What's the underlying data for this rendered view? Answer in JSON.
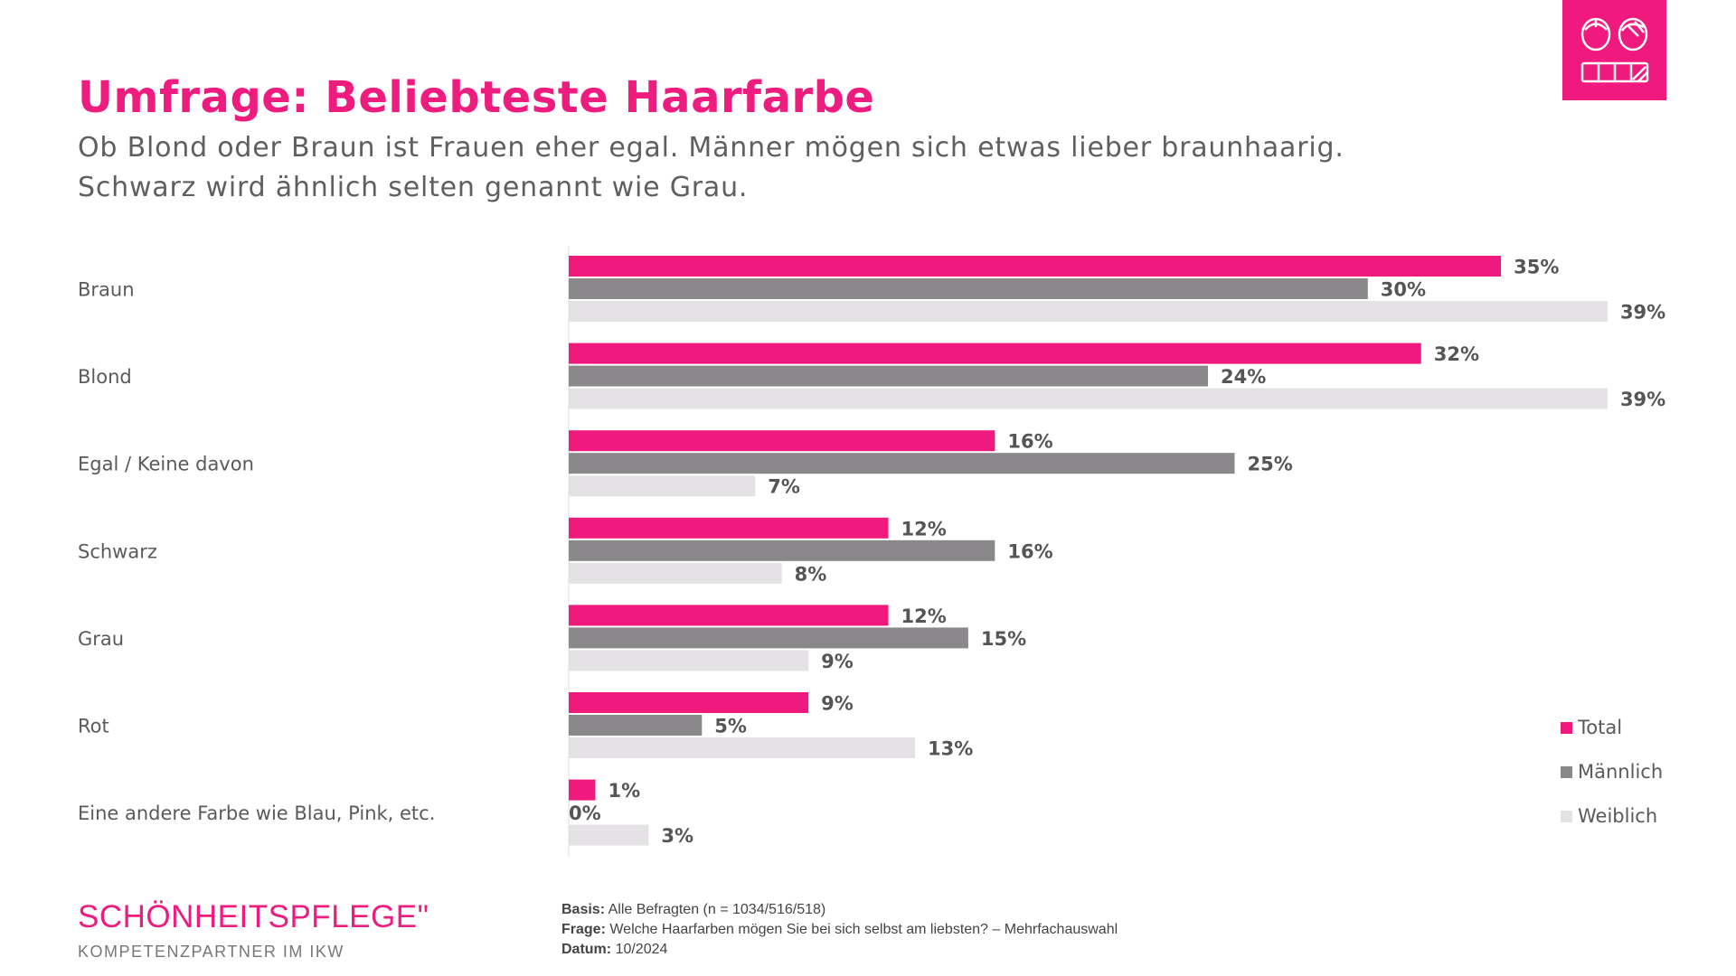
{
  "title": "Umfrage: Beliebteste Haarfarbe",
  "subtitle": [
    "Ob Blond oder Braun ist Frauen eher egal. Männer mögen sich etwas lieber braunhaarig.",
    "Schwarz wird ähnlich selten genannt wie Grau."
  ],
  "logo_icon": "two-faces-hair-color-icon",
  "chart_data": {
    "type": "bar",
    "orientation": "horizontal",
    "categories": [
      "Braun",
      "Blond",
      "Egal / Keine davon",
      "Schwarz",
      "Grau",
      "Rot",
      "Eine andere Farbe wie Blau, Pink, etc."
    ],
    "series": [
      {
        "name": "Total",
        "color": "#f0197d",
        "values": [
          35,
          32,
          16,
          12,
          12,
          9,
          1
        ]
      },
      {
        "name": "Männlich",
        "color": "#8a888b",
        "values": [
          30,
          24,
          25,
          16,
          15,
          5,
          0
        ]
      },
      {
        "name": "Weiblich",
        "color": "#e4e2e4",
        "values": [
          39,
          39,
          7,
          8,
          9,
          13,
          3
        ]
      }
    ],
    "value_suffix": "%",
    "legend": "right",
    "grid": false
  },
  "footer": {
    "brand": "SCHÖNHEITSPFLEGE\"",
    "brand_sub": "KOMPETENZPARTNER IM IKW",
    "notes": [
      {
        "label": "Basis:",
        "text": "Alle Befragten (n = 1034/516/518)"
      },
      {
        "label": "Frage:",
        "text": "Welche Haarfarben mögen Sie bei sich selbst am liebsten? – Mehrfachauswahl"
      },
      {
        "label": "Datum:",
        "text": "10/2024"
      }
    ]
  }
}
